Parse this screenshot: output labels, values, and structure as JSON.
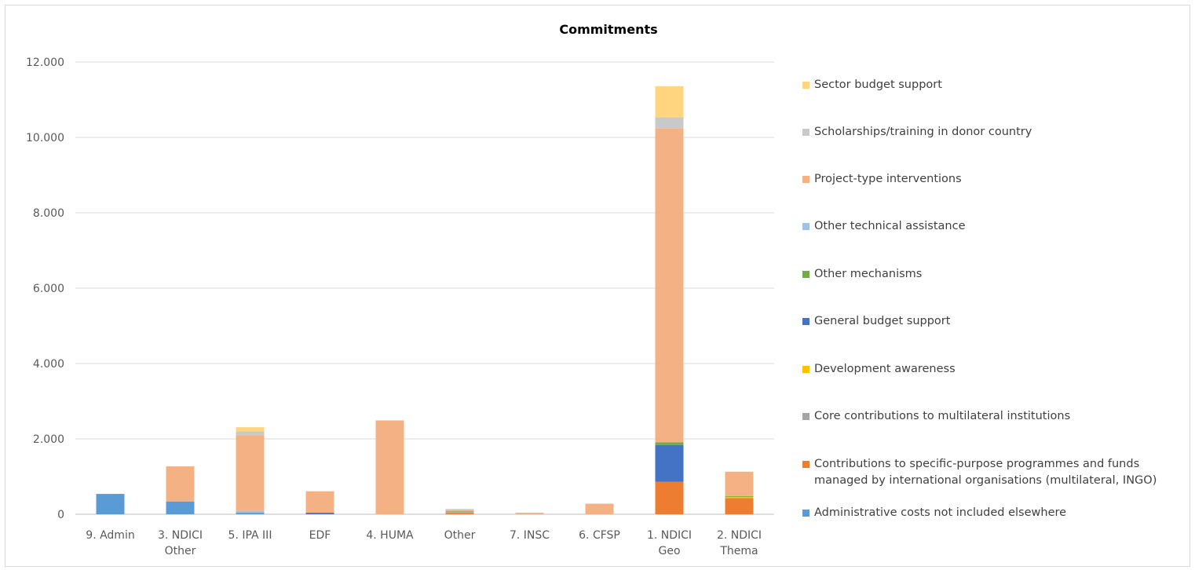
{
  "chart_data": {
    "type": "bar",
    "stacked": true,
    "title": "Commitments",
    "xlabel": "",
    "ylabel": "",
    "ylim": [
      0,
      12000
    ],
    "y_ticks": [
      "0",
      "2.000",
      "4.000",
      "6.000",
      "8.000",
      "10.000",
      "12.000"
    ],
    "grid": true,
    "legend_position": "right",
    "categories": [
      [
        "9. Admin"
      ],
      [
        "3. NDICI",
        "Other"
      ],
      [
        "5. IPA III"
      ],
      [
        "EDF"
      ],
      [
        "4. HUMA"
      ],
      [
        "Other"
      ],
      [
        "7. INSC"
      ],
      [
        "6. CFSP"
      ],
      [
        "1. NDICI",
        "Geo"
      ],
      [
        "2. NDICI",
        "Thema"
      ]
    ],
    "series": [
      {
        "name": "Administrative costs not included elsewhere",
        "color": "#5b9bd5",
        "values": [
          540,
          340,
          40,
          0,
          0,
          0,
          0,
          0,
          0,
          0
        ]
      },
      {
        "name": "  Contributions to specific-purpose programmes and funds managed by international organisations (multilateral, INGO)",
        "color": "#ed7d31",
        "values": [
          0,
          0,
          0,
          0,
          0,
          30,
          0,
          0,
          860,
          430
        ]
      },
      {
        "name": "Core contributions to multilateral institutions",
        "color": "#a5a5a5",
        "values": [
          0,
          0,
          0,
          0,
          0,
          30,
          0,
          0,
          0,
          0
        ]
      },
      {
        "name": "Development awareness",
        "color": "#ffc000",
        "values": [
          0,
          0,
          0,
          0,
          0,
          20,
          0,
          0,
          0,
          40
        ]
      },
      {
        "name": "General budget support",
        "color": "#4472c4",
        "values": [
          0,
          0,
          0,
          40,
          0,
          0,
          0,
          0,
          980,
          0
        ]
      },
      {
        "name": "Other mechanisms",
        "color": "#70ad47",
        "values": [
          0,
          0,
          0,
          0,
          0,
          10,
          0,
          0,
          70,
          10
        ]
      },
      {
        "name": "Other technical assistance",
        "color": "#9dc3e6",
        "values": [
          0,
          0,
          50,
          0,
          0,
          0,
          0,
          0,
          0,
          0
        ]
      },
      {
        "name": "Project-type interventions",
        "color": "#f4b183",
        "values": [
          0,
          930,
          2010,
          570,
          2490,
          20,
          40,
          280,
          8320,
          650
        ]
      },
      {
        "name": "Scholarships/training in donor country",
        "color": "#c9c9c9",
        "values": [
          0,
          0,
          100,
          0,
          0,
          30,
          0,
          0,
          300,
          0
        ]
      },
      {
        "name": "Sector budget support",
        "color": "#ffd580",
        "values": [
          0,
          0,
          110,
          0,
          0,
          0,
          0,
          0,
          830,
          0
        ]
      }
    ]
  }
}
